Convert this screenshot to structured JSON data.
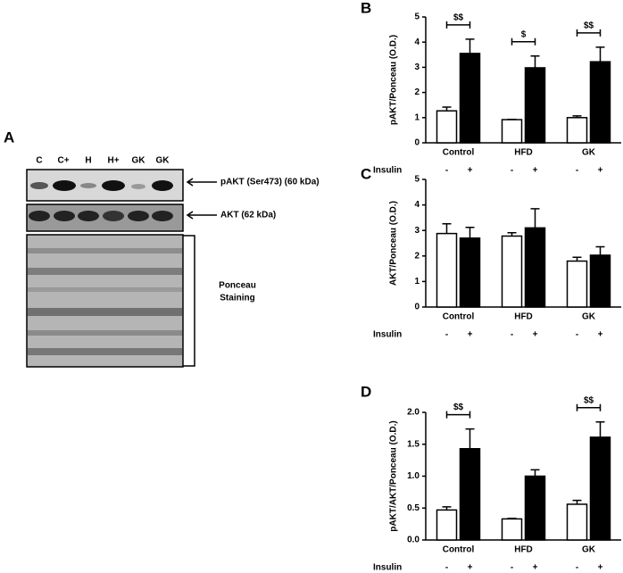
{
  "blot": {
    "panel": "A",
    "lanes": [
      "C",
      "C+",
      "H",
      "H+",
      "GK",
      "GK"
    ],
    "bands": [
      "pAKT (Ser473) (60 kDa)",
      "AKT (62 kDa)"
    ],
    "stain": [
      "Ponceau",
      "Staining"
    ]
  },
  "chart_data": [
    {
      "type": "bar",
      "panel": "B",
      "ylabel": "pAKT/Ponceau (O.D.)",
      "row_label": "Insulin",
      "categories": [
        "Control",
        "HFD",
        "GK"
      ],
      "ylim": [
        0,
        5
      ],
      "yticks": [
        0,
        1,
        2,
        3,
        4,
        5
      ],
      "series": [
        {
          "name": "-",
          "color": "#ffffff",
          "values": [
            1.27,
            0.92,
            1.0
          ],
          "errors": [
            0.15,
            0.01,
            0.07
          ]
        },
        {
          "name": "+",
          "color": "#000000",
          "values": [
            3.55,
            2.98,
            3.22
          ],
          "errors": [
            0.57,
            0.47,
            0.58
          ]
        }
      ],
      "significance": [
        "$$",
        "$",
        "$$"
      ]
    },
    {
      "type": "bar",
      "panel": "C",
      "ylabel": "AKT/Ponceau (O.D.)",
      "row_label": "Insulin",
      "categories": [
        "Control",
        "HFD",
        "GK"
      ],
      "ylim": [
        0,
        5
      ],
      "yticks": [
        0,
        1,
        2,
        3,
        4,
        5
      ],
      "series": [
        {
          "name": "-",
          "color": "#ffffff",
          "values": [
            2.88,
            2.78,
            1.8
          ],
          "errors": [
            0.38,
            0.13,
            0.15
          ]
        },
        {
          "name": "+",
          "color": "#000000",
          "values": [
            2.7,
            3.1,
            2.03
          ],
          "errors": [
            0.42,
            0.75,
            0.33
          ]
        }
      ]
    },
    {
      "type": "bar",
      "panel": "D",
      "ylabel": "pAKT/AKT/Ponceau (O.D.)",
      "row_label": "Insulin",
      "categories": [
        "Control",
        "HFD",
        "GK"
      ],
      "ylim": [
        0,
        2
      ],
      "yticks": [
        {
          "value": 0,
          "label": "0.0"
        },
        {
          "value": 0.5,
          "label": "0.5"
        },
        {
          "value": 1,
          "label": "1.0"
        },
        {
          "value": 1.5,
          "label": "1.5"
        },
        {
          "value": 2,
          "label": "2.0"
        }
      ],
      "series": [
        {
          "name": "-",
          "color": "#ffffff",
          "values": [
            0.47,
            0.33,
            0.56
          ],
          "errors": [
            0.05,
            0.01,
            0.06
          ]
        },
        {
          "name": "+",
          "color": "#000000",
          "values": [
            1.43,
            1.0,
            1.61
          ],
          "errors": [
            0.31,
            0.1,
            0.24
          ]
        }
      ],
      "significance": [
        "$$",
        null,
        "$$"
      ]
    }
  ]
}
